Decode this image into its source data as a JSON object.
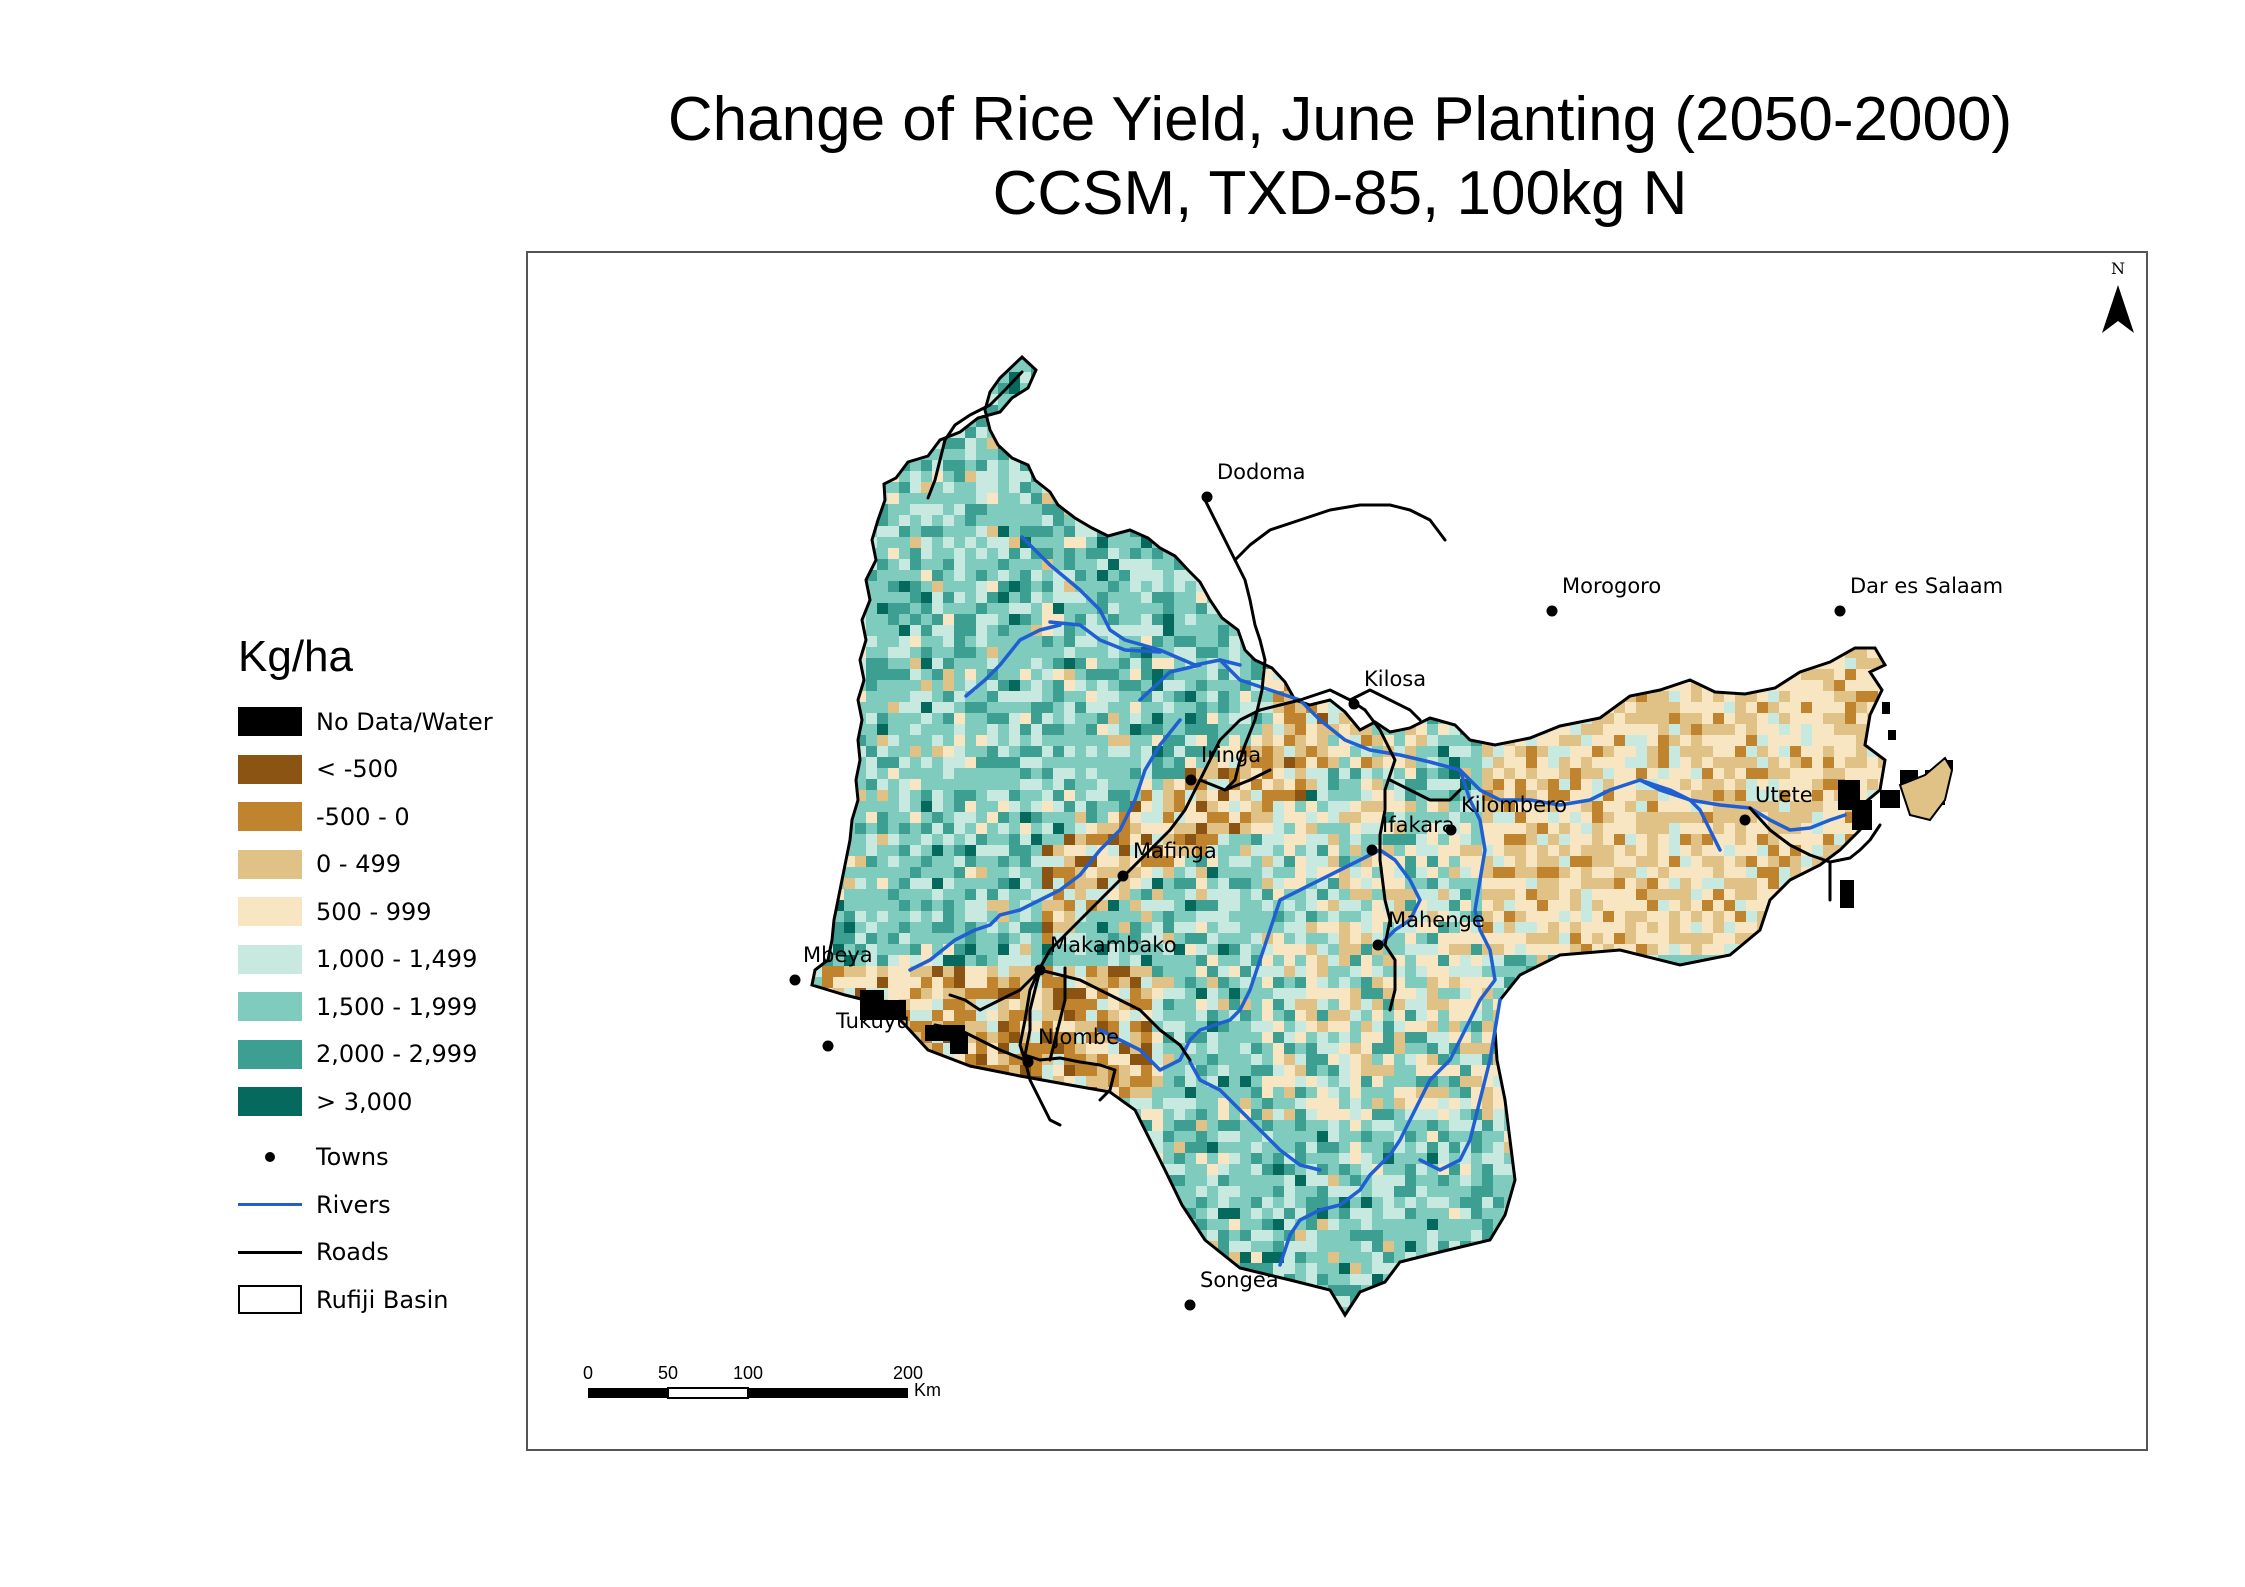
{
  "title_line1": "Change of Rice Yield, June Planting (2050-2000)",
  "title_line2": "CCSM, TXD-85, 100kg N",
  "north_label": "N",
  "legend": {
    "title": "Kg/ha",
    "classes": [
      {
        "label": "No Data/Water",
        "color": "#000000"
      },
      {
        "label": "< -500",
        "color": "#8c5412"
      },
      {
        "label": "-500 - 0",
        "color": "#c0842f"
      },
      {
        "label": "0 - 499",
        "color": "#e0c287"
      },
      {
        "label": "500 - 999",
        "color": "#f8e6c2"
      },
      {
        "label": "1,000 - 1,499",
        "color": "#c8e9e0"
      },
      {
        "label": "1,500 - 1,999",
        "color": "#7fcbbd"
      },
      {
        "label": "2,000 - 2,999",
        "color": "#3d9f91"
      },
      {
        "label": "> 3,000",
        "color": "#05695e"
      }
    ],
    "symbols": [
      {
        "label": "Towns",
        "kind": "point"
      },
      {
        "label": "Rivers",
        "kind": "line",
        "color": "#1f5fd1"
      },
      {
        "label": "Roads",
        "kind": "line",
        "color": "#000000"
      },
      {
        "label": "Rufiji Basin",
        "kind": "box"
      }
    ]
  },
  "towns": [
    "Dodoma",
    "Morogoro",
    "Dar es Salaam",
    "Kilosa",
    "Iringa",
    "Utete",
    "Ifakara",
    "Kilombero",
    "Mafinga",
    "Mahenge",
    "Mbeya",
    "Makambako",
    "Tukuyu",
    "Njombe",
    "Songea"
  ],
  "scale_bar": {
    "ticks": [
      "0",
      "50",
      "100",
      "200"
    ],
    "unit": "Km"
  }
}
